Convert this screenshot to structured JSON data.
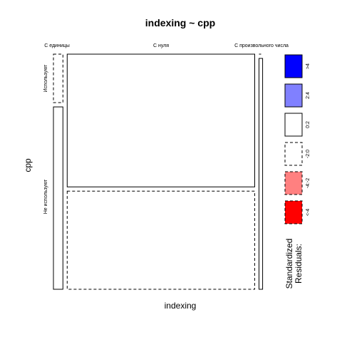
{
  "chart_data": {
    "type": "mosaic",
    "title": "indexing ~ cpp",
    "xlabel": "indexing",
    "ylabel": "cpp",
    "x_categories": [
      "С единицы",
      "С нуля",
      "С произвольного числа"
    ],
    "y_categories": [
      "Используют",
      "Не используют"
    ],
    "cells": [
      {
        "x": "С единицы",
        "y": "Используют",
        "proportion_x": 0.047,
        "proportion_y_within_x": 0.21,
        "residual_class": "-2:0"
      },
      {
        "x": "С единицы",
        "y": "Не используют",
        "proportion_x": 0.047,
        "proportion_y_within_x": 0.79,
        "residual_class": "0:2"
      },
      {
        "x": "С нуля",
        "y": "Используют",
        "proportion_x": 0.93,
        "proportion_y_within_x": 0.575,
        "residual_class": "0:2"
      },
      {
        "x": "С нуля",
        "y": "Не используют",
        "proportion_x": 0.93,
        "proportion_y_within_x": 0.425,
        "residual_class": "-2:0"
      },
      {
        "x": "С произвольного числа",
        "y": "Используют",
        "proportion_x": 0.018,
        "proportion_y_within_x": 0.0,
        "residual_class": "-2:0"
      },
      {
        "x": "С произвольного числа",
        "y": "Не используют",
        "proportion_x": 0.018,
        "proportion_y_within_x": 1.0,
        "residual_class": "0:2"
      }
    ],
    "legend": {
      "title": [
        "Standardized",
        "Residuals:"
      ],
      "entries": [
        {
          "label": ">4",
          "color": "#0000ff",
          "dashed": false
        },
        {
          "label": "2:4",
          "color": "#8080ff",
          "dashed": false
        },
        {
          "label": "0:2",
          "color": "#ffffff",
          "dashed": false
        },
        {
          "label": "-2:0",
          "color": "#ffffff",
          "dashed": true
        },
        {
          "label": "-4:-2",
          "color": "#ff8080",
          "dashed": true
        },
        {
          "label": "<-4",
          "color": "#ff0000",
          "dashed": true
        }
      ]
    }
  }
}
